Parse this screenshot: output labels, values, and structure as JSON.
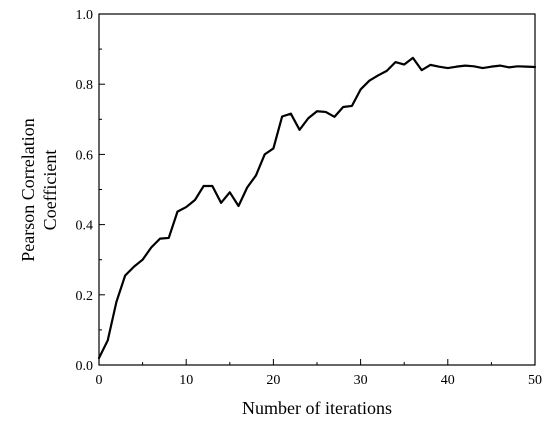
{
  "chart_data": {
    "type": "line",
    "title": "",
    "xlabel": "Number of iterations",
    "ylabel_lines": [
      "Pearson Correlation",
      "Coefficient"
    ],
    "xlim": [
      0,
      50
    ],
    "ylim": [
      0.0,
      1.0
    ],
    "x_ticks": [
      0,
      10,
      20,
      30,
      40,
      50
    ],
    "x_tick_labels": [
      "0",
      "10",
      "20",
      "30",
      "40",
      "50"
    ],
    "y_ticks": [
      0.0,
      0.2,
      0.4,
      0.6,
      0.8,
      1.0
    ],
    "y_tick_labels": [
      "0.0",
      "0.2",
      "0.4",
      "0.6",
      "0.8",
      "1.0"
    ],
    "grid": false,
    "legend": "none",
    "line_color": "#000000",
    "series": [
      {
        "x": [
          0,
          1,
          2,
          3,
          4,
          5,
          6,
          7,
          8,
          9,
          10,
          11,
          12,
          13,
          14,
          15,
          16,
          17,
          18,
          19,
          20,
          21,
          22,
          23,
          24,
          25,
          26,
          27,
          28,
          29,
          30,
          31,
          32,
          33,
          34,
          35,
          36,
          37,
          38,
          39,
          40,
          41,
          42,
          43,
          44,
          45,
          46,
          47,
          48,
          49,
          50
        ],
        "y": [
          0.02,
          0.07,
          0.18,
          0.255,
          0.28,
          0.3,
          0.335,
          0.36,
          0.362,
          0.437,
          0.45,
          0.47,
          0.51,
          0.51,
          0.462,
          0.492,
          0.453,
          0.506,
          0.54,
          0.6,
          0.617,
          0.708,
          0.716,
          0.67,
          0.703,
          0.723,
          0.721,
          0.707,
          0.735,
          0.738,
          0.785,
          0.81,
          0.825,
          0.838,
          0.863,
          0.856,
          0.875,
          0.84,
          0.855,
          0.85,
          0.846,
          0.85,
          0.853,
          0.851,
          0.846,
          0.85,
          0.853,
          0.848,
          0.851,
          0.85,
          0.849
        ]
      }
    ]
  }
}
